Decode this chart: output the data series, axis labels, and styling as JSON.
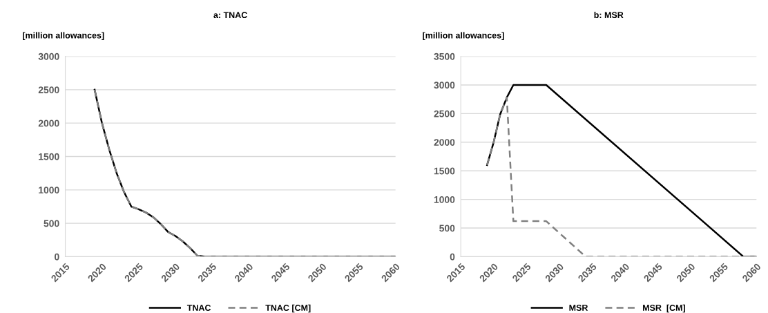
{
  "chart_data": [
    {
      "type": "line",
      "title": "a: TNAC",
      "ylabel": "[million allowances]",
      "xlim": [
        2015,
        2060
      ],
      "xticks": [
        2015,
        2020,
        2025,
        2030,
        2035,
        2040,
        2045,
        2050,
        2055,
        2060
      ],
      "ylim": [
        0,
        3000
      ],
      "yticks": [
        0,
        500,
        1000,
        1500,
        2000,
        2500,
        3000
      ],
      "grid": "y",
      "legend": "bottom",
      "x": [
        2019,
        2020,
        2021,
        2022,
        2023,
        2024,
        2025,
        2026,
        2027,
        2028,
        2029,
        2030,
        2031,
        2032,
        2033,
        2034,
        2040,
        2045,
        2050,
        2055,
        2060
      ],
      "series": [
        {
          "name": "TNAC",
          "color": "#000000",
          "line_style": "solid",
          "values": [
            2500,
            2000,
            1600,
            1250,
            970,
            750,
            710,
            660,
            590,
            490,
            370,
            310,
            230,
            130,
            15,
            0,
            0,
            0,
            0,
            0,
            0
          ]
        },
        {
          "name": "TNAC [CM]",
          "color": "#808080",
          "line_style": "dashed",
          "values": [
            2500,
            2000,
            1600,
            1250,
            970,
            750,
            710,
            660,
            590,
            490,
            370,
            310,
            230,
            130,
            15,
            0,
            0,
            0,
            0,
            0,
            0
          ]
        }
      ]
    },
    {
      "type": "line",
      "title": "b: MSR",
      "ylabel": "[million allowances]",
      "xlim": [
        2015,
        2060
      ],
      "xticks": [
        2015,
        2020,
        2025,
        2030,
        2035,
        2040,
        2045,
        2050,
        2055,
        2060
      ],
      "ylim": [
        0,
        3500
      ],
      "yticks": [
        0,
        500,
        1000,
        1500,
        2000,
        2500,
        3000,
        3500
      ],
      "grid": "y",
      "legend": "bottom",
      "series": [
        {
          "name": "MSR",
          "color": "#000000",
          "line_style": "solid",
          "x": [
            2019,
            2020,
            2021,
            2022,
            2023,
            2028,
            2058,
            2060
          ],
          "values": [
            1600,
            2000,
            2490,
            2780,
            3000,
            3000,
            0,
            0
          ]
        },
        {
          "name": "MSR  [CM]",
          "color": "#808080",
          "line_style": "dashed",
          "x": [
            2019,
            2020,
            2021,
            2022,
            2023,
            2028,
            2034,
            2060
          ],
          "values": [
            1600,
            2000,
            2490,
            2780,
            620,
            620,
            0,
            0
          ]
        }
      ]
    }
  ]
}
